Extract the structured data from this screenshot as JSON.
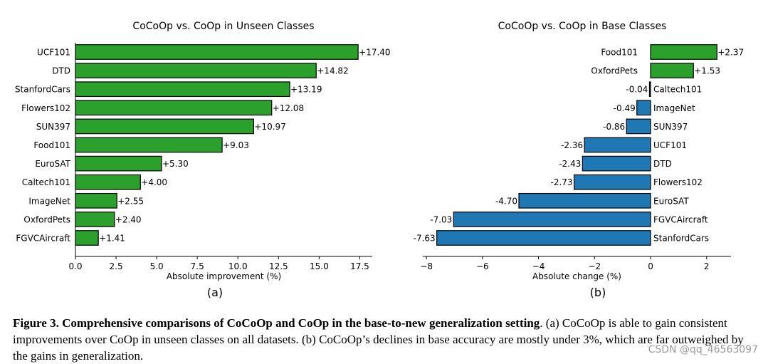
{
  "chart_data": [
    {
      "type": "bar",
      "orientation": "horizontal",
      "title": "CoCoOp vs. CoOp in Unseen Classes",
      "xlabel": "Absolute improvement (%)",
      "panel_label": "(a)",
      "xlim": [
        0,
        18.27
      ],
      "xticks": [
        "0.0",
        "2.5",
        "5.0",
        "7.5",
        "10.0",
        "12.5",
        "15.0",
        "17.5"
      ],
      "tick_values": [
        0,
        2.5,
        5,
        7.5,
        10,
        12.5,
        15,
        17.5
      ],
      "categories": [
        "UCF101",
        "DTD",
        "StanfordCars",
        "Flowers102",
        "SUN397",
        "Food101",
        "EuroSAT",
        "Caltech101",
        "ImageNet",
        "OxfordPets",
        "FGVCAircraft"
      ],
      "values": [
        17.4,
        14.82,
        13.19,
        12.08,
        10.97,
        9.03,
        5.3,
        4.0,
        2.55,
        2.4,
        1.41
      ],
      "value_labels": [
        "+17.40",
        "+14.82",
        "+13.19",
        "+12.08",
        "+10.97",
        "+9.03",
        "+5.30",
        "+4.00",
        "+2.55",
        "+2.40",
        "+1.41"
      ],
      "bar_color": "#2ca02c"
    },
    {
      "type": "bar",
      "orientation": "horizontal",
      "title": "CoCoOp vs. CoOp in Base Classes",
      "xlabel": "Absolute change (%)",
      "panel_label": "(b)",
      "xlim": [
        -8.13,
        2.87
      ],
      "xticks": [
        "−8",
        "−6",
        "−4",
        "−2",
        "0",
        "2"
      ],
      "tick_values": [
        -8,
        -6,
        -4,
        -2,
        0,
        2
      ],
      "categories": [
        "Food101",
        "OxfordPets",
        "Caltech101",
        "ImageNet",
        "SUN397",
        "UCF101",
        "DTD",
        "Flowers102",
        "EuroSAT",
        "FGVCAircraft",
        "StanfordCars"
      ],
      "values": [
        2.37,
        1.53,
        -0.04,
        -0.49,
        -0.86,
        -2.36,
        -2.43,
        -2.73,
        -4.7,
        -7.03,
        -7.63
      ],
      "value_labels": [
        "+2.37",
        "+1.53",
        "-0.04",
        "-0.49",
        "-0.86",
        "-2.36",
        "-2.43",
        "-2.73",
        "-4.70",
        "-7.03",
        "-7.63"
      ],
      "positive_color": "#2ca02c",
      "negative_color": "#1f77b4"
    }
  ],
  "caption": {
    "label": "Figure 3.",
    "bold": "Comprehensive comparisons of CoCoOp and CoOp in the base-to-new generalization setting",
    "rest": ". (a) CoCoOp is able to gain consistent improvements over CoOp in unseen classes on all datasets. (b) CoCoOp’s declines in base accuracy are mostly under 3%, which are far outweighed by the gains in generalization."
  },
  "watermark": "CSDN @qq_46563097"
}
